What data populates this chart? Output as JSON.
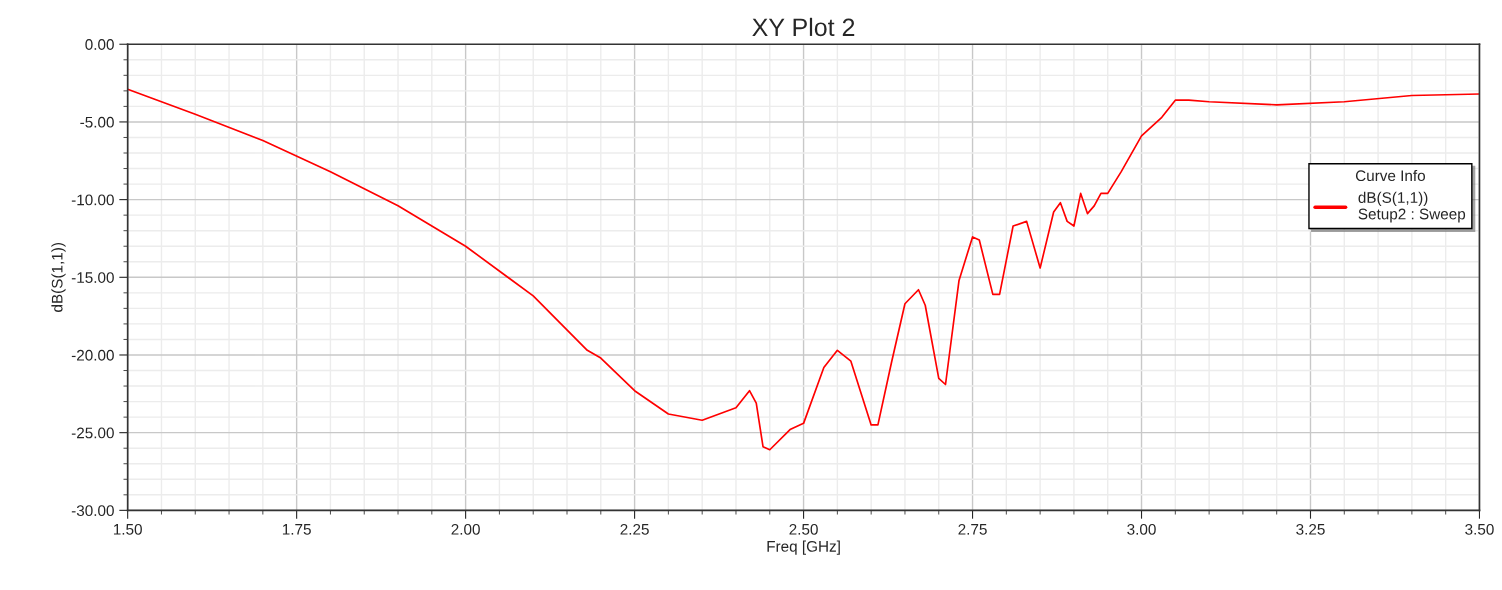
{
  "chart_data": {
    "type": "line",
    "title": "XY Plot 2",
    "xlabel": "Freq [GHz]",
    "ylabel": "dB(S(1,1))",
    "legend_title": "Curve Info",
    "x": [
      1.5,
      1.6,
      1.7,
      1.8,
      1.9,
      2.0,
      2.1,
      2.18,
      2.2,
      2.25,
      2.3,
      2.35,
      2.4,
      2.42,
      2.43,
      2.44,
      2.45,
      2.48,
      2.5,
      2.53,
      2.55,
      2.57,
      2.6,
      2.61,
      2.63,
      2.65,
      2.67,
      2.68,
      2.7,
      2.71,
      2.73,
      2.75,
      2.76,
      2.78,
      2.79,
      2.81,
      2.83,
      2.85,
      2.87,
      2.88,
      2.89,
      2.9,
      2.91,
      2.92,
      2.93,
      2.94,
      2.95,
      2.97,
      3.0,
      3.03,
      3.05,
      3.07,
      3.1,
      3.2,
      3.3,
      3.4,
      3.5
    ],
    "series": [
      {
        "name": "dB(S(1,1))\nSetup2 : Sweep",
        "color": "#ff0000",
        "values": [
          -2.9,
          -4.5,
          -6.2,
          -8.2,
          -10.4,
          -13.0,
          -16.2,
          -19.7,
          -20.2,
          -22.3,
          -23.8,
          -24.2,
          -23.4,
          -22.3,
          -23.1,
          -25.9,
          -26.1,
          -24.8,
          -24.4,
          -20.8,
          -19.7,
          -20.4,
          -24.5,
          -24.5,
          -20.5,
          -16.7,
          -15.8,
          -16.8,
          -21.5,
          -21.9,
          -15.2,
          -12.4,
          -12.6,
          -16.1,
          -16.1,
          -11.7,
          -11.4,
          -14.4,
          -10.8,
          -10.2,
          -11.4,
          -11.7,
          -9.6,
          -10.9,
          -10.4,
          -9.6,
          -9.6,
          -8.2,
          -5.9,
          -4.7,
          -3.6,
          -3.6,
          -3.7,
          -3.9,
          -3.7,
          -3.3,
          -3.2
        ]
      }
    ],
    "xlim": [
      1.5,
      3.5
    ],
    "ylim": [
      -30,
      0
    ],
    "xticks": [
      {
        "value": 1.5,
        "label": "1.50"
      },
      {
        "value": 1.75,
        "label": "1.75"
      },
      {
        "value": 2.0,
        "label": "2.00"
      },
      {
        "value": 2.25,
        "label": "2.25"
      },
      {
        "value": 2.5,
        "label": "2.50"
      },
      {
        "value": 2.75,
        "label": "2.75"
      },
      {
        "value": 3.0,
        "label": "3.00"
      },
      {
        "value": 3.25,
        "label": "3.25"
      },
      {
        "value": 3.5,
        "label": "3.50"
      }
    ],
    "yticks": [
      {
        "value": -30,
        "label": "-30.00"
      },
      {
        "value": -25,
        "label": "-25.00"
      },
      {
        "value": -20,
        "label": "-20.00"
      },
      {
        "value": -15,
        "label": "-15.00"
      },
      {
        "value": -10,
        "label": "-10.00"
      },
      {
        "value": -5,
        "label": "-5.00"
      },
      {
        "value": 0,
        "label": "0.00"
      }
    ],
    "grid": true,
    "legend": "top right",
    "marker": "none",
    "line_style": "solid"
  }
}
